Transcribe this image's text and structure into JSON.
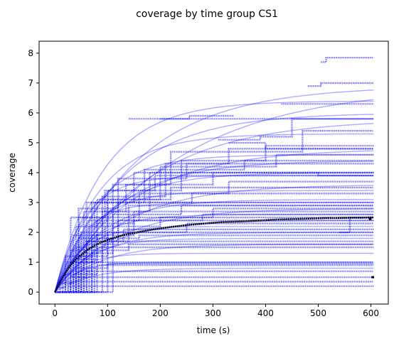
{
  "chart_data": {
    "type": "line",
    "title": "coverage by time group CS1",
    "xlabel": "time (s)",
    "ylabel": "coverage",
    "xlim": [
      -30,
      633
    ],
    "ylim": [
      -0.4,
      8.4
    ],
    "xticks": [
      0,
      100,
      200,
      300,
      400,
      500,
      600
    ],
    "yticks": [
      0,
      1,
      2,
      3,
      4,
      5,
      6,
      7,
      8
    ],
    "grid": false,
    "legend": "none",
    "individual_color": "#0000ff",
    "mean_color": "#000000",
    "saturating_curves": [
      {
        "asymptote": 6.9,
        "rate": 0.0065
      },
      {
        "asymptote": 6.4,
        "rate": 0.011
      },
      {
        "asymptote": 6.9,
        "rate": 0.0045
      },
      {
        "asymptote": 6.0,
        "rate": 0.008
      },
      {
        "asymptote": 5.8,
        "rate": 0.006
      },
      {
        "asymptote": 5.3,
        "rate": 0.012
      },
      {
        "asymptote": 4.8,
        "rate": 0.007
      },
      {
        "asymptote": 4.6,
        "rate": 0.013
      },
      {
        "asymptote": 4.4,
        "rate": 0.009
      },
      {
        "asymptote": 4.0,
        "rate": 0.011
      },
      {
        "asymptote": 3.9,
        "rate": 0.018
      },
      {
        "asymptote": 3.6,
        "rate": 0.008
      },
      {
        "asymptote": 3.4,
        "rate": 0.015
      },
      {
        "asymptote": 3.1,
        "rate": 0.012
      },
      {
        "asymptote": 3.0,
        "rate": 0.02
      },
      {
        "asymptote": 2.8,
        "rate": 0.009
      },
      {
        "asymptote": 2.6,
        "rate": 0.016
      },
      {
        "asymptote": 2.4,
        "rate": 0.011
      },
      {
        "asymptote": 2.2,
        "rate": 0.02
      },
      {
        "asymptote": 2.0,
        "rate": 0.013
      },
      {
        "asymptote": 1.8,
        "rate": 0.017
      },
      {
        "asymptote": 1.6,
        "rate": 0.012
      },
      {
        "asymptote": 1.3,
        "rate": 0.022
      },
      {
        "asymptote": 1.0,
        "rate": 0.025
      },
      {
        "asymptote": 0.8,
        "rate": 0.015
      }
    ],
    "step_series": [
      {
        "x": [
          0,
          20,
          40,
          55,
          605
        ],
        "y": [
          0,
          0.6,
          0.8,
          1.0,
          1.0
        ]
      },
      {
        "x": [
          0,
          30,
          60,
          605
        ],
        "y": [
          0,
          0.5,
          0.7,
          0.7
        ]
      },
      {
        "x": [
          0,
          15,
          35,
          605
        ],
        "y": [
          0,
          0.3,
          0.5,
          0.5
        ]
      },
      {
        "x": [
          0,
          40,
          80,
          605
        ],
        "y": [
          0,
          0.6,
          0.9,
          0.9
        ]
      },
      {
        "x": [
          0,
          25,
          605
        ],
        "y": [
          0,
          0.2,
          0.2
        ]
      },
      {
        "x": [
          0,
          50,
          100,
          605
        ],
        "y": [
          0,
          0.8,
          0.95,
          0.95
        ]
      },
      {
        "x": [
          0,
          10,
          20,
          605
        ],
        "y": [
          0,
          0.15,
          0.35,
          0.35
        ]
      },
      {
        "x": [
          0,
          30,
          70,
          140,
          605
        ],
        "y": [
          0,
          0.7,
          1.4,
          1.6,
          1.6
        ]
      },
      {
        "x": [
          0,
          40,
          90,
          605
        ],
        "y": [
          0,
          1.0,
          1.5,
          1.5
        ]
      },
      {
        "x": [
          0,
          35,
          80,
          160,
          605
        ],
        "y": [
          0,
          1.1,
          1.8,
          1.9,
          1.9
        ]
      },
      {
        "x": [
          0,
          45,
          100,
          605
        ],
        "y": [
          0,
          1.2,
          2.0,
          2.0
        ]
      },
      {
        "x": [
          0,
          25,
          60,
          130,
          605
        ],
        "y": [
          0,
          1.0,
          1.7,
          2.1,
          2.1
        ]
      },
      {
        "x": [
          0,
          50,
          110,
          250,
          605
        ],
        "y": [
          0,
          1.3,
          2.0,
          2.3,
          2.3
        ]
      },
      {
        "x": [
          0,
          40,
          95,
          200,
          605
        ],
        "y": [
          0,
          1.5,
          2.2,
          2.5,
          2.5
        ]
      },
      {
        "x": [
          0,
          55,
          120,
          280,
          605
        ],
        "y": [
          0,
          1.6,
          2.4,
          2.6,
          2.6
        ]
      },
      {
        "x": [
          0,
          30,
          80,
          150,
          605
        ],
        "y": [
          0,
          1.4,
          2.3,
          2.7,
          2.7
        ]
      },
      {
        "x": [
          0,
          60,
          140,
          300,
          605
        ],
        "y": [
          0,
          1.7,
          2.5,
          2.8,
          2.8
        ]
      },
      {
        "x": [
          0,
          45,
          110,
          240,
          605
        ],
        "y": [
          0,
          1.8,
          2.6,
          2.9,
          2.9
        ]
      },
      {
        "x": [
          0,
          35,
          90,
          180,
          605
        ],
        "y": [
          0,
          1.9,
          2.7,
          3.0,
          3.0
        ]
      },
      {
        "x": [
          0,
          70,
          150,
          605
        ],
        "y": [
          0,
          1.9,
          2.4,
          2.4
        ]
      },
      {
        "x": [
          0,
          20,
          60,
          605
        ],
        "y": [
          0,
          1.2,
          1.7,
          1.7
        ]
      },
      {
        "x": [
          0,
          50,
          120,
          260,
          605
        ],
        "y": [
          0,
          2.0,
          3.0,
          3.3,
          3.3
        ]
      },
      {
        "x": [
          0,
          40,
          100,
          220,
          605
        ],
        "y": [
          0,
          2.2,
          3.1,
          3.5,
          3.5
        ]
      },
      {
        "x": [
          0,
          65,
          160,
          330,
          605
        ],
        "y": [
          0,
          2.4,
          3.3,
          3.7,
          3.7
        ]
      },
      {
        "x": [
          0,
          30,
          95,
          190,
          605
        ],
        "y": [
          0,
          2.5,
          3.4,
          3.9,
          3.9
        ]
      },
      {
        "x": [
          0,
          55,
          135,
          300,
          605
        ],
        "y": [
          0,
          2.7,
          3.6,
          4.0,
          4.0
        ]
      },
      {
        "x": [
          0,
          60,
          150,
          605
        ],
        "y": [
          0,
          3.0,
          4.0,
          4.0
        ]
      },
      {
        "x": [
          0,
          45,
          120,
          250,
          605
        ],
        "y": [
          0,
          2.8,
          3.8,
          4.3,
          4.3
        ]
      },
      {
        "x": [
          0,
          70,
          170,
          360,
          605
        ],
        "y": [
          0,
          3.0,
          4.1,
          4.4,
          4.4
        ]
      },
      {
        "x": [
          0,
          80,
          200,
          420,
          605
        ],
        "y": [
          0,
          3.1,
          4.2,
          4.6,
          4.6
        ]
      },
      {
        "x": [
          0,
          90,
          210,
          330,
          605
        ],
        "y": [
          0,
          3.2,
          4.3,
          4.8,
          4.8
        ]
      },
      {
        "x": [
          0,
          100,
          240,
          400,
          605
        ],
        "y": [
          0,
          3.4,
          4.4,
          4.9,
          4.9
        ]
      },
      {
        "x": [
          0,
          110,
          220,
          470,
          605
        ],
        "y": [
          0,
          3.6,
          4.7,
          5.4,
          5.4
        ]
      },
      {
        "x": [
          0,
          75,
          180,
          500,
          605
        ],
        "y": [
          0,
          3.0,
          4.0,
          3.9,
          3.9
        ]
      },
      {
        "x": [
          0,
          45,
          140,
          605
        ],
        "y": [
          0,
          2.5,
          2.9,
          2.9
        ]
      },
      {
        "x": [
          140,
          200,
          605
        ],
        "y": [
          5.8,
          5.8,
          5.8
        ]
      },
      {
        "x": [
          200,
          255,
          340
        ],
        "y": [
          5.8,
          5.9,
          5.9
        ]
      },
      {
        "x": [
          310,
          390,
          450,
          605
        ],
        "y": [
          5.1,
          5.2,
          5.8,
          5.8
        ]
      },
      {
        "x": [
          430,
          470,
          605
        ],
        "y": [
          6.3,
          6.3,
          6.3
        ]
      },
      {
        "x": [
          480,
          505,
          605
        ],
        "y": [
          6.9,
          7.0,
          7.0
        ]
      },
      {
        "x": [
          505,
          515,
          605
        ],
        "y": [
          7.7,
          7.85,
          7.85
        ]
      },
      {
        "x": [
          330,
          400,
          605
        ],
        "y": [
          5.0,
          4.8,
          4.8
        ]
      },
      {
        "x": [
          540,
          560,
          605
        ],
        "y": [
          2.0,
          2.5,
          2.5
        ]
      }
    ],
    "mean_series": {
      "x": [
        0,
        10,
        20,
        30,
        40,
        50,
        60,
        70,
        80,
        90,
        100,
        120,
        140,
        160,
        180,
        200,
        220,
        240,
        260,
        280,
        300,
        320,
        340,
        360,
        380,
        400,
        420,
        440,
        460,
        480,
        500,
        520,
        540,
        560,
        580,
        600,
        605
      ],
      "y": [
        0,
        0.35,
        0.65,
        0.9,
        1.1,
        1.25,
        1.4,
        1.5,
        1.6,
        1.68,
        1.75,
        1.86,
        1.95,
        2.02,
        2.08,
        2.13,
        2.18,
        2.22,
        2.26,
        2.29,
        2.32,
        2.35,
        2.36,
        2.37,
        2.39,
        2.41,
        2.43,
        2.44,
        2.45,
        2.46,
        2.47,
        2.48,
        2.48,
        2.49,
        2.49,
        2.5,
        2.5
      ]
    },
    "mean_tail_marks": [
      {
        "x": 600,
        "y": 2.45
      },
      {
        "x": 605,
        "y": 0.5
      }
    ]
  }
}
